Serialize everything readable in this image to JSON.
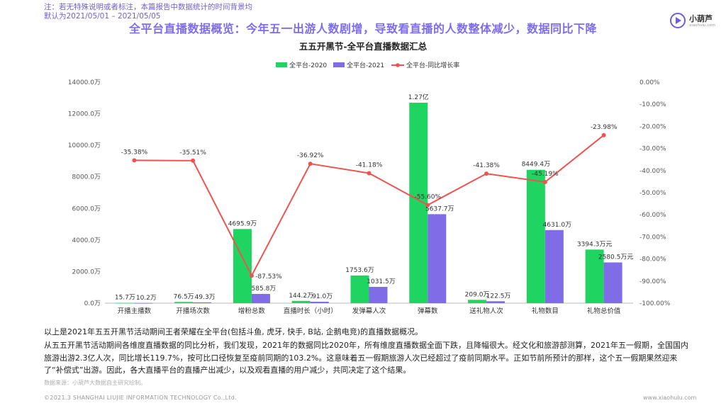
{
  "note": "注：若无特殊说明或者标注，本篇报告中数据统计的时间背景均默认为2021/05/01 – 2021/05/05",
  "page_title": "全平台直播数据概览：今年五一出游人数剧增，导致看直播的人数整体减少，数据同比下降",
  "logo": {
    "name": "小葫芦",
    "sub": "xiaohulu.com"
  },
  "colors": {
    "series2020": "#1fd460",
    "series2021": "#7f6ce6",
    "ratio": "#ef5350",
    "title": "#7d6df0"
  },
  "chart_data": {
    "type": "bar",
    "title": "五五开黑节-全平台直播数据汇总",
    "categories": [
      "开播主播数",
      "开播场次数",
      "增粉总数",
      "直播时长（小时）",
      "发弹幕人次",
      "弹幕数",
      "送礼物人次",
      "礼物数目",
      "礼物总价值"
    ],
    "y_left": {
      "ticks": [
        "0.0万",
        "2000.0万",
        "4000.0万",
        "6000.0万",
        "8000.0万",
        "10000.0万",
        "12000.0万",
        "14000.0万"
      ],
      "ylim": [
        0,
        14000
      ]
    },
    "y_right": {
      "ticks": [
        "0.00%",
        "-10.00%",
        "-20.00%",
        "-30.00%",
        "-40.00%",
        "-50.00%",
        "-60.00%",
        "-70.00%",
        "-80.00%",
        "-90.00%",
        "-100.00%"
      ],
      "ylim": [
        -100,
        0
      ]
    },
    "legend": "top-center",
    "series": [
      {
        "name": "全平台-2020",
        "values": [
          15.7,
          76.5,
          4695.9,
          144.2,
          1753.6,
          12700,
          209.0,
          8449.4,
          3394.3
        ],
        "labels": [
          "15.7万",
          "76.5万",
          "4695.9万",
          "144.2万",
          "1753.6万",
          "1.27亿",
          "209.0万",
          "8449.4万",
          "3394.3万元"
        ]
      },
      {
        "name": "全平台-2021",
        "values": [
          10.2,
          49.3,
          585.8,
          91.0,
          1031.5,
          5637.7,
          122.5,
          4631.0,
          2580.5
        ],
        "labels": [
          "10.2万",
          "49.3万",
          "585.8万",
          "91.0万",
          "1031.5万",
          "5637.7万",
          "122.5万",
          "4631.0万",
          "2580.5万元"
        ]
      },
      {
        "name": "全平台-同比增长率",
        "values": [
          -35.38,
          -35.51,
          -87.53,
          -36.92,
          -41.18,
          -55.6,
          -41.38,
          -45.19,
          -23.98
        ],
        "labels": [
          "-35.38%",
          "-35.51%",
          "-87.53%",
          "-36.92%",
          "-41.18%",
          "-55.60%",
          "-41.38%",
          "-45.19%",
          "-23.98%"
        ]
      }
    ]
  },
  "text": {
    "p1": "以上是2021年五五开黑节活动期间王者荣耀在全平台(包括斗鱼, 虎牙, 快手, B站, 企鹅电竞)的直播数据概况。",
    "p2": "从五五开黑节活动期间各维度直播数据的同比分析，我们发现，2021年的数据同比2020年，所有维度直播数据全面下跌，且降幅很大。经文化和旅游部测算，2021年五一假期，全国国内旅游出游2.3亿人次，同比增长119.7%，按可比口径恢复至疫前同期的103.2%。这意味着五一假期旅游人次已经超过了疫前同期水平。正如节前所预计的那样，这个五一假期果然迎来了“补偿式”出游。因此，各大直播平台的直播产出减少，以及观看直播的用户减少，共同决定了这个结果。"
  },
  "source": "数据来源：小葫芦大数据自主研究绘制。",
  "footer_left": "©2021.3 SHANGHAI LIUJIE INFORMATION TECHNOLOGY Co.,Ltd.",
  "footer_right": "www.xiaohulu.com"
}
